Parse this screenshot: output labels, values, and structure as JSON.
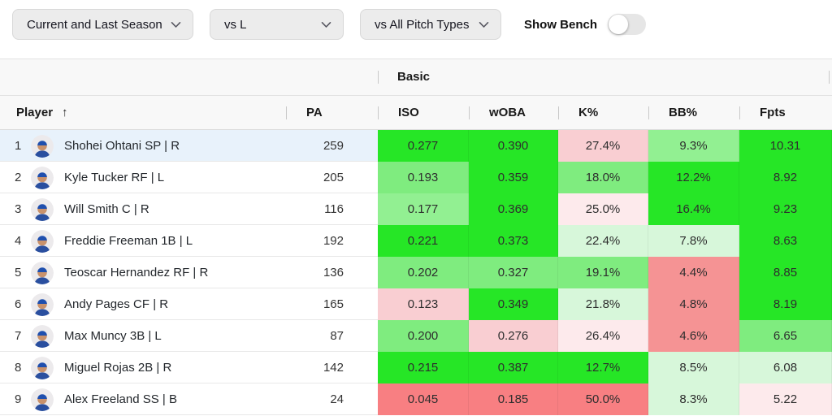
{
  "filters": {
    "season": {
      "label": "Current and Last Season"
    },
    "vs_hand": {
      "label": "vs L"
    },
    "pitch_types": {
      "label": "vs All Pitch Types"
    },
    "show_bench": {
      "label": "Show Bench",
      "on": false
    }
  },
  "colors": {
    "g1": "#26e626",
    "g2": "#7fec7f",
    "g3": "#92f092",
    "g4": "#d7f7da",
    "r1": "#f87f82",
    "r2": "#f59394",
    "r3": "#f9ced2",
    "r4": "#fdeaec",
    "selected_row": "#e8f2fb"
  },
  "table": {
    "group_header": "Basic",
    "sort_icon": "↑",
    "columns": {
      "player": "Player",
      "pa": "PA",
      "stats": [
        "ISO",
        "wOBA",
        "K%",
        "BB%",
        "Fpts"
      ]
    },
    "rows": [
      {
        "rank": "1",
        "player": "Shohei Ohtani SP | R",
        "pa": "259",
        "selected": true,
        "stats": [
          {
            "value": "0.277",
            "tier": "g1"
          },
          {
            "value": "0.390",
            "tier": "g1"
          },
          {
            "value": "27.4%",
            "tier": "r3"
          },
          {
            "value": "9.3%",
            "tier": "g3"
          },
          {
            "value": "10.31",
            "tier": "g1"
          }
        ]
      },
      {
        "rank": "2",
        "player": "Kyle Tucker RF | L",
        "pa": "205",
        "selected": false,
        "stats": [
          {
            "value": "0.193",
            "tier": "g2"
          },
          {
            "value": "0.359",
            "tier": "g1"
          },
          {
            "value": "18.0%",
            "tier": "g2"
          },
          {
            "value": "12.2%",
            "tier": "g1"
          },
          {
            "value": "8.92",
            "tier": "g1"
          }
        ]
      },
      {
        "rank": "3",
        "player": "Will Smith C | R",
        "pa": "116",
        "selected": false,
        "stats": [
          {
            "value": "0.177",
            "tier": "g3"
          },
          {
            "value": "0.369",
            "tier": "g1"
          },
          {
            "value": "25.0%",
            "tier": "r4"
          },
          {
            "value": "16.4%",
            "tier": "g1"
          },
          {
            "value": "9.23",
            "tier": "g1"
          }
        ]
      },
      {
        "rank": "4",
        "player": "Freddie Freeman 1B | L",
        "pa": "192",
        "selected": false,
        "stats": [
          {
            "value": "0.221",
            "tier": "g1"
          },
          {
            "value": "0.373",
            "tier": "g1"
          },
          {
            "value": "22.4%",
            "tier": "g4"
          },
          {
            "value": "7.8%",
            "tier": "g4"
          },
          {
            "value": "8.63",
            "tier": "g1"
          }
        ]
      },
      {
        "rank": "5",
        "player": "Teoscar Hernandez RF | R",
        "pa": "136",
        "selected": false,
        "stats": [
          {
            "value": "0.202",
            "tier": "g2"
          },
          {
            "value": "0.327",
            "tier": "g2"
          },
          {
            "value": "19.1%",
            "tier": "g2"
          },
          {
            "value": "4.4%",
            "tier": "r2"
          },
          {
            "value": "8.85",
            "tier": "g1"
          }
        ]
      },
      {
        "rank": "6",
        "player": "Andy Pages CF | R",
        "pa": "165",
        "selected": false,
        "stats": [
          {
            "value": "0.123",
            "tier": "r3"
          },
          {
            "value": "0.349",
            "tier": "g1"
          },
          {
            "value": "21.8%",
            "tier": "g4"
          },
          {
            "value": "4.8%",
            "tier": "r2"
          },
          {
            "value": "8.19",
            "tier": "g1"
          }
        ]
      },
      {
        "rank": "7",
        "player": "Max Muncy 3B | L",
        "pa": "87",
        "selected": false,
        "stats": [
          {
            "value": "0.200",
            "tier": "g2"
          },
          {
            "value": "0.276",
            "tier": "r3"
          },
          {
            "value": "26.4%",
            "tier": "r4"
          },
          {
            "value": "4.6%",
            "tier": "r2"
          },
          {
            "value": "6.65",
            "tier": "g2"
          }
        ]
      },
      {
        "rank": "8",
        "player": "Miguel Rojas 2B | R",
        "pa": "142",
        "selected": false,
        "stats": [
          {
            "value": "0.215",
            "tier": "g1"
          },
          {
            "value": "0.387",
            "tier": "g1"
          },
          {
            "value": "12.7%",
            "tier": "g1"
          },
          {
            "value": "8.5%",
            "tier": "g4"
          },
          {
            "value": "6.08",
            "tier": "g4"
          }
        ]
      },
      {
        "rank": "9",
        "player": "Alex Freeland SS | B",
        "pa": "24",
        "selected": false,
        "stats": [
          {
            "value": "0.045",
            "tier": "r1"
          },
          {
            "value": "0.185",
            "tier": "r1"
          },
          {
            "value": "50.0%",
            "tier": "r1"
          },
          {
            "value": "8.3%",
            "tier": "g4"
          },
          {
            "value": "5.22",
            "tier": "r4"
          }
        ]
      }
    ]
  }
}
